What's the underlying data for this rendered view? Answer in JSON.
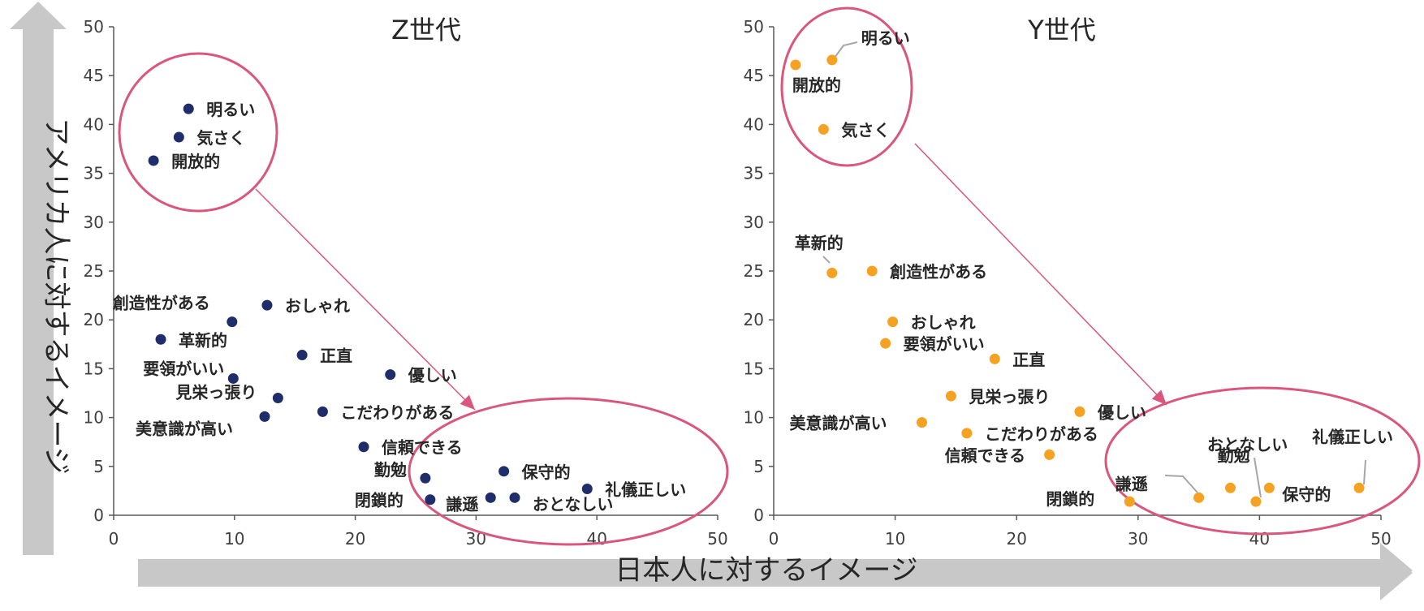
{
  "axes": {
    "x_title": "日本人に対するイメージ",
    "y_title": "アメリカ人に対するイメージ"
  },
  "colors": {
    "z_series": "#1f2d6b",
    "y_series": "#f5a122",
    "highlight": "#d9577c",
    "arrow_bar": "#c8c8c8",
    "axis": "#595959"
  },
  "chart_data": [
    {
      "type": "scatter",
      "title": "Z世代",
      "xlabel": "日本人に対するイメージ",
      "ylabel": "アメリカ人に対するイメージ",
      "xlim": [
        0,
        50
      ],
      "ylim": [
        0,
        50
      ],
      "xticks": [
        "0",
        "10",
        "20",
        "30",
        "40",
        "50"
      ],
      "yticks": [
        "0",
        "5",
        "10",
        "15",
        "20",
        "25",
        "30",
        "35",
        "40",
        "45",
        "50"
      ],
      "color": "#1f2d6b",
      "grid": false,
      "points": [
        {
          "label": "明るい",
          "x": 6.2,
          "y": 41.6
        },
        {
          "label": "気さく",
          "x": 5.4,
          "y": 38.7
        },
        {
          "label": "開放的",
          "x": 3.3,
          "y": 36.3
        },
        {
          "label": "おしゃれ",
          "x": 12.7,
          "y": 21.5
        },
        {
          "label": "創造性がある",
          "x": 9.8,
          "y": 19.8
        },
        {
          "label": "革新的",
          "x": 3.9,
          "y": 18.0
        },
        {
          "label": "正直",
          "x": 15.6,
          "y": 16.4
        },
        {
          "label": "優しい",
          "x": 22.9,
          "y": 14.4
        },
        {
          "label": "要領がいい",
          "x": 9.9,
          "y": 14.0
        },
        {
          "label": "見栄っ張り",
          "x": 13.6,
          "y": 12.0
        },
        {
          "label": "こだわりがある",
          "x": 17.3,
          "y": 10.6
        },
        {
          "label": "美意識が高い",
          "x": 12.5,
          "y": 10.1
        },
        {
          "label": "信頼できる",
          "x": 20.7,
          "y": 7.0
        },
        {
          "label": "保守的",
          "x": 32.3,
          "y": 4.5
        },
        {
          "label": "勤勉",
          "x": 25.8,
          "y": 3.8
        },
        {
          "label": "礼儀正しい",
          "x": 39.2,
          "y": 2.7
        },
        {
          "label": "謙遜",
          "x": 31.2,
          "y": 1.8
        },
        {
          "label": "おとなしい",
          "x": 33.2,
          "y": 1.8
        },
        {
          "label": "閉鎖的",
          "x": 26.2,
          "y": 1.6
        }
      ]
    },
    {
      "type": "scatter",
      "title": "Y世代",
      "xlabel": "日本人に対するイメージ",
      "ylabel": "アメリカ人に対するイメージ",
      "xlim": [
        0,
        50
      ],
      "ylim": [
        0,
        50
      ],
      "xticks": [
        "0",
        "10",
        "20",
        "30",
        "40",
        "50"
      ],
      "yticks": [
        "0",
        "5",
        "10",
        "15",
        "20",
        "25",
        "30",
        "35",
        "40",
        "45",
        "50"
      ],
      "color": "#f5a122",
      "grid": false,
      "points": [
        {
          "label": "明るい",
          "x": 4.8,
          "y": 46.6
        },
        {
          "label": "開放的",
          "x": 1.8,
          "y": 46.1
        },
        {
          "label": "気さく",
          "x": 4.1,
          "y": 39.5
        },
        {
          "label": "革新的",
          "x": 4.8,
          "y": 24.8
        },
        {
          "label": "創造性がある",
          "x": 8.1,
          "y": 25.0
        },
        {
          "label": "おしゃれ",
          "x": 9.8,
          "y": 19.8
        },
        {
          "label": "要領がいい",
          "x": 9.2,
          "y": 17.6
        },
        {
          "label": "正直",
          "x": 18.2,
          "y": 16.0
        },
        {
          "label": "見栄っ張り",
          "x": 14.6,
          "y": 12.2
        },
        {
          "label": "優しい",
          "x": 25.2,
          "y": 10.6
        },
        {
          "label": "美意識が高い",
          "x": 12.2,
          "y": 9.5
        },
        {
          "label": "こだわりがある",
          "x": 15.9,
          "y": 8.4
        },
        {
          "label": "信頼できる",
          "x": 22.7,
          "y": 6.2
        },
        {
          "label": "謙遜",
          "x": 35.0,
          "y": 1.8
        },
        {
          "label": "勤勉",
          "x": 37.6,
          "y": 2.8
        },
        {
          "label": "おとなしい",
          "x": 39.7,
          "y": 1.4
        },
        {
          "label": "保守的",
          "x": 40.8,
          "y": 2.8
        },
        {
          "label": "礼儀正しい",
          "x": 48.2,
          "y": 2.8
        },
        {
          "label": "閉鎖的",
          "x": 29.3,
          "y": 1.4
        }
      ]
    }
  ]
}
